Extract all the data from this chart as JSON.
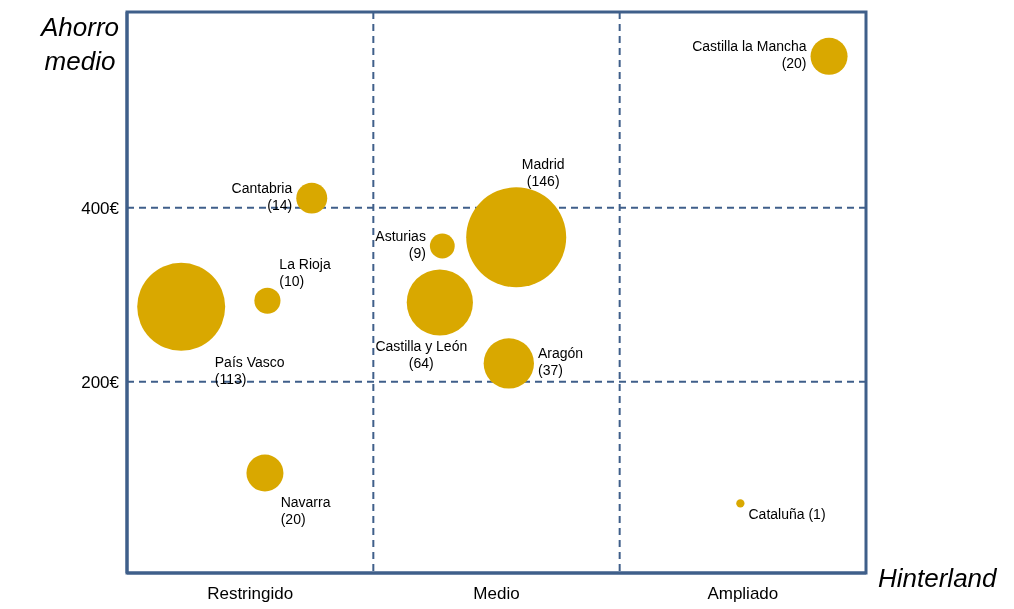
{
  "chart_data": {
    "type": "bubble",
    "xlabel": "Hinterland",
    "ylabel": "Ahorro medio",
    "ylim": [
      -20,
      625
    ],
    "categories": [
      "Restringido",
      "Medio",
      "Ampliado"
    ],
    "yticks": [
      {
        "value": 200,
        "label": "200€"
      },
      {
        "value": 400,
        "label": "400€"
      }
    ],
    "grid": true,
    "series": [
      {
        "name": "Cantabria",
        "color": "#d9a800",
        "x": [
          "Restringido"
        ],
        "values": [
          411
        ],
        "sizes": [
          14
        ],
        "value_labels": [
          "(14)"
        ]
      },
      {
        "name": "La Rioja",
        "color": "#d9a800",
        "x": [
          "Restringido"
        ],
        "values": [
          293
        ],
        "sizes": [
          10
        ],
        "value_labels": [
          "(10)"
        ]
      },
      {
        "name": "País Vasco",
        "color": "#d9a800",
        "x": [
          "Restringido"
        ],
        "values": [
          286
        ],
        "sizes": [
          113
        ],
        "value_labels": [
          "(113)"
        ]
      },
      {
        "name": "Navarra",
        "color": "#d9a800",
        "x": [
          "Restringido"
        ],
        "values": [
          95
        ],
        "sizes": [
          20
        ],
        "value_labels": [
          "(20)"
        ]
      },
      {
        "name": "Asturias",
        "color": "#d9a800",
        "x": [
          "Medio"
        ],
        "values": [
          356
        ],
        "sizes": [
          9
        ],
        "value_labels": [
          "(9)"
        ]
      },
      {
        "name": "Castilla y León",
        "color": "#d9a800",
        "x": [
          "Medio"
        ],
        "values": [
          291
        ],
        "sizes": [
          64
        ],
        "value_labels": [
          "(64)"
        ]
      },
      {
        "name": "Madrid",
        "color": "#d9a800",
        "x": [
          "Medio"
        ],
        "values": [
          366
        ],
        "sizes": [
          146
        ],
        "value_labels": [
          "(146)"
        ]
      },
      {
        "name": "Aragón",
        "color": "#d9a800",
        "x": [
          "Medio"
        ],
        "values": [
          221
        ],
        "sizes": [
          37
        ],
        "value_labels": [
          "(37)"
        ]
      },
      {
        "name": "Castilla la Mancha",
        "color": "#d9a800",
        "x": [
          "Ampliado"
        ],
        "values": [
          574
        ],
        "sizes": [
          20
        ],
        "value_labels": [
          "(20)"
        ]
      },
      {
        "name": "Cataluña",
        "color": "#d9a800",
        "x": [
          "Ampliado"
        ],
        "values": [
          60
        ],
        "sizes": [
          1
        ],
        "value_labels": [
          "(1)"
        ]
      }
    ]
  }
}
